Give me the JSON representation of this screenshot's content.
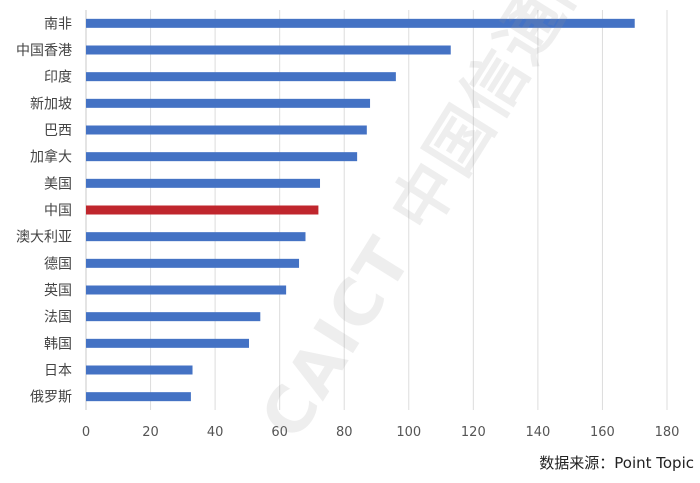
{
  "chart_data": {
    "type": "bar",
    "orientation": "horizontal",
    "categories": [
      "南非",
      "中国香港",
      "印度",
      "新加坡",
      "巴西",
      "加拿大",
      "美国",
      "中国",
      "澳大利亚",
      "德国",
      "英国",
      "法国",
      "韩国",
      "日本",
      "俄罗斯"
    ],
    "values": [
      170,
      113,
      96,
      88,
      87,
      84,
      72.5,
      72,
      68,
      66,
      62,
      54,
      50.5,
      33,
      32.5
    ],
    "highlight_index": 7,
    "bar_color": "#4472c4",
    "highlight_color": "#c0262d",
    "xlim": [
      0,
      180
    ],
    "xticks": [
      0,
      20,
      40,
      60,
      80,
      100,
      120,
      140,
      160,
      180
    ],
    "grid": "vertical"
  },
  "watermark": "CAICT 中国信通院",
  "source": "数据来源：Point Topic"
}
